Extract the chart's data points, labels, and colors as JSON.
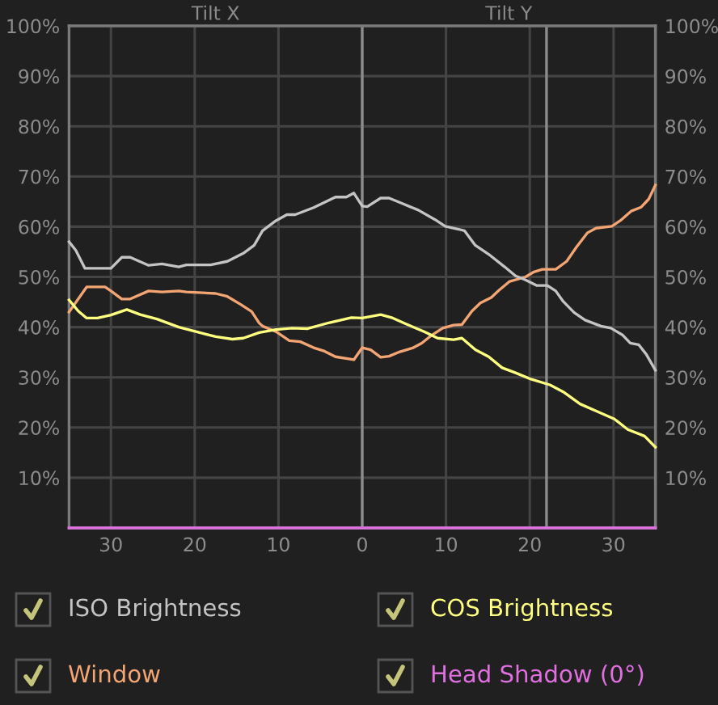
{
  "chart_data": {
    "type": "line",
    "annotations": [
      "Tilt X",
      "Tilt Y"
    ],
    "xlim": [
      -35,
      35
    ],
    "xticks": [
      {
        "value": -30,
        "label": "30"
      },
      {
        "value": -20,
        "label": "20"
      },
      {
        "value": -10,
        "label": "10"
      },
      0,
      10,
      20,
      30
    ],
    "ylim": [
      0,
      100
    ],
    "yticks": [
      {
        "value": 10,
        "label": "10%"
      },
      {
        "value": 20,
        "label": "20%"
      },
      {
        "value": 30,
        "label": "30%"
      },
      {
        "value": 40,
        "label": "40%"
      },
      {
        "value": 50,
        "label": "50%"
      },
      {
        "value": 60,
        "label": "60%"
      },
      {
        "value": 70,
        "label": "70%"
      },
      {
        "value": 80,
        "label": "80%"
      },
      {
        "value": 90,
        "label": "90%"
      },
      {
        "value": 100,
        "label": "100%"
      }
    ],
    "y2lim": [
      0,
      100
    ],
    "y2ticks": [
      {
        "value": 10,
        "label": "10%"
      },
      {
        "value": 20,
        "label": "20%"
      },
      {
        "value": 30,
        "label": "30%"
      },
      {
        "value": 40,
        "label": "40%"
      },
      {
        "value": 50,
        "label": "50%"
      },
      {
        "value": 60,
        "label": "60%"
      },
      {
        "value": 70,
        "label": "70%"
      },
      {
        "value": 80,
        "label": "80%"
      },
      {
        "value": 90,
        "label": "90%"
      },
      {
        "value": 100,
        "label": "100%"
      }
    ],
    "grid": true,
    "legend": "bottom",
    "ref_lines": [
      {
        "axis": "x",
        "value": 0,
        "color": "#8c8c8c"
      },
      {
        "axis": "x",
        "value": 22,
        "color": "#8c8c8c"
      }
    ],
    "series": [
      {
        "name": "ISO Brightness",
        "color": "#c4c4c4",
        "x": [
          -35,
          -34.2,
          -33.1,
          -30,
          -28.7,
          -27.7,
          -25.5,
          -23.9,
          -21.9,
          -21,
          -18.1,
          -16.1,
          -14.2,
          -12.9,
          -11.9,
          -10.3,
          -9,
          -8,
          -5.8,
          -3.2,
          -1.9,
          -1,
          0,
          0.6,
          2.2,
          3.2,
          4.8,
          6.7,
          8.7,
          9.9,
          11.5,
          12.2,
          13.5,
          15.1,
          17,
          18.3,
          19.5,
          20.8,
          22.1,
          23.1,
          24,
          25.3,
          26.6,
          28.5,
          29.7,
          31.1,
          32,
          33,
          33.9,
          35
        ],
        "values": [
          57,
          55.3,
          51.7,
          51.7,
          53.9,
          53.9,
          52.3,
          52.6,
          52,
          52.4,
          52.4,
          53.1,
          54.7,
          56.3,
          59.2,
          61.2,
          62.4,
          62.4,
          63.8,
          65.9,
          65.9,
          66.7,
          64.1,
          64,
          65.7,
          65.7,
          64.6,
          63.3,
          61.4,
          60.1,
          59.5,
          59.2,
          56.3,
          54.5,
          52,
          50.2,
          49.4,
          48.3,
          48.3,
          47.2,
          45.1,
          42.9,
          41.4,
          40.2,
          39.8,
          38.4,
          36.8,
          36.5,
          34.6,
          31.4
        ]
      },
      {
        "name": "COS Brightness",
        "color": "#ffff80",
        "x": [
          -35,
          -33.9,
          -32.9,
          -31.6,
          -30,
          -28.1,
          -26.5,
          -24.5,
          -21.9,
          -19.4,
          -17.5,
          -15.5,
          -14.2,
          -12.3,
          -10.3,
          -8.4,
          -6.5,
          -3.9,
          -1.3,
          0,
          2.2,
          3.5,
          5.4,
          7.4,
          9,
          10.9,
          11.9,
          13.5,
          15.1,
          16.7,
          18.3,
          20.2,
          22.4,
          24,
          26,
          27.9,
          30.1,
          31.7,
          33.7,
          35
        ],
        "values": [
          45.4,
          43.2,
          41.8,
          41.8,
          42.4,
          43.5,
          42.5,
          41.6,
          40,
          38.9,
          38.1,
          37.6,
          37.8,
          38.9,
          39.5,
          39.8,
          39.7,
          40.9,
          41.9,
          41.8,
          42.5,
          41.9,
          40.5,
          39.1,
          37.8,
          37.5,
          37.8,
          35.5,
          34.1,
          31.9,
          30.9,
          29.6,
          28.5,
          27.1,
          24.7,
          23.3,
          21.7,
          19.6,
          18.3,
          16.1
        ]
      },
      {
        "name": "Window",
        "color": "#f4a574",
        "x": [
          -35,
          -32.9,
          -30.7,
          -30,
          -28.7,
          -27.7,
          -25.5,
          -23.9,
          -21.9,
          -21,
          -17.5,
          -16.1,
          -14.5,
          -13.2,
          -12.3,
          -11.9,
          -10.3,
          -8.7,
          -7.4,
          -5.8,
          -4.5,
          -3.2,
          -1,
          0,
          1,
          2.2,
          3.2,
          4.5,
          6.1,
          7.1,
          8.3,
          9.6,
          10.9,
          11.9,
          13.1,
          14.1,
          15.4,
          16.3,
          17.6,
          19.5,
          20.5,
          21.5,
          23.1,
          24.4,
          25.6,
          26.9,
          27.9,
          29.8,
          30.8,
          32.1,
          33.3,
          34.2,
          35
        ],
        "values": [
          43,
          48,
          48,
          47.2,
          45.6,
          45.6,
          47.2,
          47,
          47.2,
          47,
          46.7,
          46.1,
          44.5,
          43.1,
          40.8,
          40.2,
          39.1,
          37.3,
          37.1,
          35.9,
          35.2,
          34.1,
          33.5,
          35.9,
          35.5,
          34,
          34.2,
          35.1,
          35.9,
          36.8,
          38.4,
          39.8,
          40.4,
          40.5,
          43.2,
          44.8,
          45.9,
          47.3,
          49.1,
          50,
          51,
          51.5,
          51.5,
          53.1,
          56,
          58.8,
          59.7,
          60.1,
          61.2,
          63.1,
          63.9,
          65.5,
          68.3
        ]
      },
      {
        "name": "Head Shadow (0°)",
        "color": "#e070e0",
        "x": [
          -35,
          35
        ],
        "values": [
          0,
          0
        ]
      }
    ]
  }
}
